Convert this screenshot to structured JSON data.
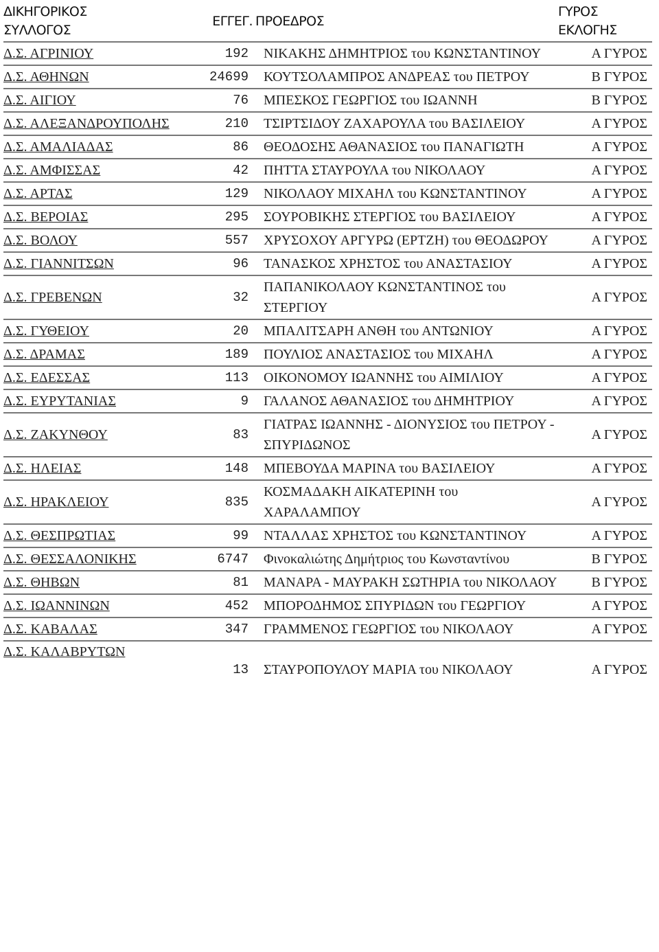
{
  "headers": {
    "association": "ΔΙΚΗΓΟΡΙΚΟΣ ΣΥΛΛΟΓΟΣ",
    "registered": "ΕΓΓΕΓ.",
    "president": "ΠΡΟΕΔΡΟΣ",
    "round": "ΓΥΡΟΣ ΕΚΛΟΓΗΣ"
  },
  "rows": [
    {
      "association": "Δ.Σ. ΑΓΡΙΝΙΟΥ",
      "registered": "192",
      "president": "ΝΙΚΑΚΗΣ ΔΗΜΗΤΡΙΟΣ του ΚΩΝΣΤΑΝΤΙΝΟΥ",
      "round": "Α ΓΥΡΟΣ"
    },
    {
      "association": "Δ.Σ. ΑΘΗΝΩΝ",
      "registered": "24699",
      "president": "ΚΟΥΤΣΟΛΑΜΠΡΟΣ ΑΝΔΡΕΑΣ του ΠΕΤΡΟΥ",
      "round": "Β ΓΥΡΟΣ"
    },
    {
      "association": "Δ.Σ. ΑΙΓΙΟΥ",
      "registered": "76",
      "president": "ΜΠΕΣΚΟΣ ΓΕΩΡΓΙΟΣ του ΙΩΑΝΝΗ",
      "round": "Β ΓΥΡΟΣ"
    },
    {
      "association": "Δ.Σ. ΑΛΕΞΑΝΔΡΟΥΠΟΛΗΣ",
      "registered": "210",
      "president": "ΤΣΙΡΤΣΙΔΟΥ ΖΑΧΑΡΟΥΛΑ του ΒΑΣΙΛΕΙΟΥ",
      "round": "Α ΓΥΡΟΣ"
    },
    {
      "association": "Δ.Σ. ΑΜΑΛΙΑΔΑΣ",
      "registered": "86",
      "president": "ΘΕΟΔΟΣΗΣ ΑΘΑΝΑΣΙΟΣ του ΠΑΝΑΓΙΩΤΗ",
      "round": "Α ΓΥΡΟΣ"
    },
    {
      "association": "Δ.Σ. ΑΜΦΙΣΣΑΣ",
      "registered": "42",
      "president": "ΠΗΤΤΑ ΣΤΑΥΡΟΥΛΑ του ΝΙΚΟΛΑΟΥ",
      "round": "Α ΓΥΡΟΣ"
    },
    {
      "association": "Δ.Σ. ΑΡΤΑΣ",
      "registered": "129",
      "president": "ΝΙΚΟΛΑΟΥ ΜΙΧΑΗΛ του ΚΩΝΣΤΑΝΤΙΝΟΥ",
      "round": "Α ΓΥΡΟΣ"
    },
    {
      "association": "Δ.Σ. ΒΕΡΟΙΑΣ",
      "registered": "295",
      "president": "ΣΟΥΡΟΒΙΚΗΣ ΣΤΕΡΓΙΟΣ του ΒΑΣΙΛΕΙΟΥ",
      "round": "Α ΓΥΡΟΣ"
    },
    {
      "association": "Δ.Σ. ΒΟΛΟΥ",
      "registered": "557",
      "president": "ΧΡΥΣΟΧΟΥ ΑΡΓΥΡΩ (ΕΡΤΖΗ) του ΘΕΟΔΩΡΟΥ",
      "round": "Α ΓΥΡΟΣ"
    },
    {
      "association": "Δ.Σ. ΓΙΑΝΝΙΤΣΩΝ",
      "registered": "96",
      "president": "ΤΑΝΑΣΚΟΣ ΧΡΗΣΤΟΣ του ΑΝΑΣΤΑΣΙΟΥ",
      "round": "Α ΓΥΡΟΣ"
    },
    {
      "association": "Δ.Σ. ΓΡΕΒΕΝΩΝ",
      "registered": "32",
      "president": "ΠΑΠΑΝΙΚΟΛΑΟΥ ΚΩΝΣΤΑΝΤΙΝΟΣ του ΣΤΕΡΓΙΟΥ",
      "round": "Α ΓΥΡΟΣ"
    },
    {
      "association": "Δ.Σ. ΓΥΘΕΙΟΥ",
      "registered": "20",
      "president": "ΜΠΑΛΙΤΣΑΡΗ ΑΝΘΗ του ΑΝΤΩΝΙΟΥ",
      "round": "Α ΓΥΡΟΣ"
    },
    {
      "association": "Δ.Σ. ΔΡΑΜΑΣ",
      "registered": "189",
      "president": "ΠΟΥΛΙΟΣ ΑΝΑΣΤΑΣΙΟΣ του ΜΙΧΑΗΛ",
      "round": "Α ΓΥΡΟΣ"
    },
    {
      "association": "Δ.Σ. ΕΔΕΣΣΑΣ",
      "registered": "113",
      "president": "ΟΙΚΟΝΟΜΟΥ ΙΩΑΝΝΗΣ του ΑΙΜΙΛΙΟΥ",
      "round": "Α ΓΥΡΟΣ"
    },
    {
      "association": "Δ.Σ. ΕΥΡΥΤΑΝΙΑΣ",
      "registered": "9",
      "president": "ΓΑΛΑΝΟΣ ΑΘΑΝΑΣΙΟΣ του ΔΗΜΗΤΡΙΟΥ",
      "round": "Α ΓΥΡΟΣ"
    },
    {
      "association": "Δ.Σ. ΖΑΚΥΝΘΟΥ",
      "registered": "83",
      "president": "ΓΙΑΤΡΑΣ ΙΩΑΝΝΗΣ - ΔΙΟΝΥΣΙΟΣ του ΠΕΤΡΟΥ - ΣΠΥΡΙΔΩΝΟΣ",
      "round": "Α ΓΥΡΟΣ"
    },
    {
      "association": "Δ.Σ. ΗΛΕΙΑΣ",
      "registered": "148",
      "president": "ΜΠΕΒΟΥΔΑ ΜΑΡΙΝΑ του ΒΑΣΙΛΕΙΟΥ",
      "round": "Α ΓΥΡΟΣ"
    },
    {
      "association": "Δ.Σ. ΗΡΑΚΛΕΙΟΥ",
      "registered": "835",
      "president": "ΚΟΣΜΑΔΑΚΗ ΑΙΚΑΤΕΡΙΝΗ του ΧΑΡΑΛΑΜΠΟΥ",
      "round": "Α ΓΥΡΟΣ"
    },
    {
      "association": "Δ.Σ. ΘΕΣΠΡΩΤΙΑΣ",
      "registered": "99",
      "president": "ΝΤΑΛΛΑΣ ΧΡΗΣΤΟΣ του ΚΩΝΣΤΑΝΤΙΝΟΥ",
      "round": "Α ΓΥΡΟΣ"
    },
    {
      "association": "Δ.Σ. ΘΕΣΣΑΛΟΝΙΚΗΣ",
      "registered": "6747",
      "president": "Φινοκαλιώτης Δημήτριος του Κωνσταντίνου",
      "round": "Β ΓΥΡΟΣ"
    },
    {
      "association": "Δ.Σ. ΘΗΒΩΝ",
      "registered": "81",
      "president": "ΜΑΝΑΡΑ - ΜΑΥΡΑΚΗ ΣΩΤΗΡΙΑ του ΝΙΚΟΛΑΟΥ",
      "round": "Β ΓΥΡΟΣ"
    },
    {
      "association": "Δ.Σ. ΙΩΑΝΝΙΝΩΝ",
      "registered": "452",
      "president": "ΜΠΟΡΟΔΗΜΟΣ ΣΠΥΡΙΔΩΝ του ΓΕΩΡΓΙΟΥ",
      "round": "Α ΓΥΡΟΣ"
    },
    {
      "association": "Δ.Σ. ΚΑΒΑΛΑΣ",
      "registered": "347",
      "president": "ΓΡΑΜΜΕΝΟΣ ΓΕΩΡΓΙΟΣ του ΝΙΚΟΛΑΟΥ",
      "round": "Α ΓΥΡΟΣ"
    },
    {
      "association": "Δ.Σ. ΚΑΛΑΒΡΥΤΩΝ",
      "registered": "13",
      "president": "ΣΤΑΥΡΟΠΟΥΛΟΥ ΜΑΡΙΑ του ΝΙΚΟΛΑΟΥ",
      "round": "Α ΓΥΡΟΣ"
    }
  ]
}
